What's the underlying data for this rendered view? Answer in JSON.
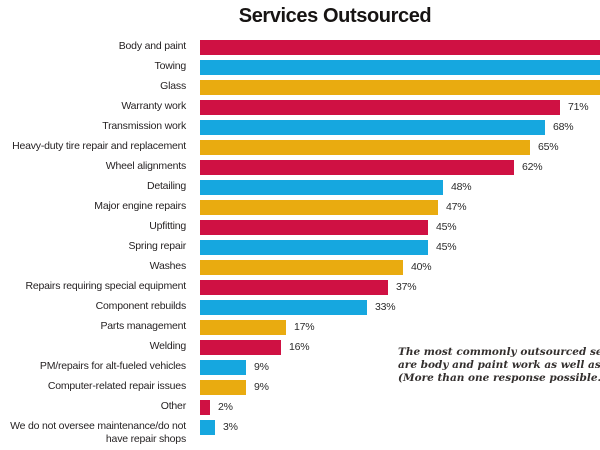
{
  "title": "Services Outsourced",
  "palette": {
    "red": "#CF1143",
    "blue": "#16A7DF",
    "yellow": "#E9AB10"
  },
  "chart_data": {
    "type": "bar",
    "orientation": "horizontal",
    "title": "Services Outsourced",
    "value_unit": "percent",
    "grid": false,
    "legend": false,
    "color_cycle": [
      "red",
      "blue",
      "yellow"
    ],
    "x_visible_range": [
      0,
      79
    ],
    "bars": [
      {
        "label": "Body and paint",
        "value": null,
        "value_label": "",
        "color": "red",
        "cut_off_at_right_edge": true
      },
      {
        "label": "Towing",
        "value": null,
        "value_label": "",
        "color": "blue",
        "cut_off_at_right_edge": true
      },
      {
        "label": "Glass",
        "value": null,
        "value_label": "",
        "color": "yellow",
        "cut_off_at_right_edge": true
      },
      {
        "label": "Warranty work",
        "value": 71,
        "value_label": "71%",
        "color": "red"
      },
      {
        "label": "Transmission work",
        "value": 68,
        "value_label": "68%",
        "color": "blue"
      },
      {
        "label": "Heavy-duty tire repair and replacement",
        "value": 65,
        "value_label": "65%",
        "color": "yellow"
      },
      {
        "label": "Wheel alignments",
        "value": 62,
        "value_label": "62%",
        "color": "red"
      },
      {
        "label": "Detailing",
        "value": 48,
        "value_label": "48%",
        "color": "blue"
      },
      {
        "label": "Major engine repairs",
        "value": 47,
        "value_label": "47%",
        "color": "yellow"
      },
      {
        "label": "Upfitting",
        "value": 45,
        "value_label": "45%",
        "color": "red"
      },
      {
        "label": "Spring repair",
        "value": 45,
        "value_label": "45%",
        "color": "blue"
      },
      {
        "label": "Washes",
        "value": 40,
        "value_label": "40%",
        "color": "yellow"
      },
      {
        "label": "Repairs requiring special equipment",
        "value": 37,
        "value_label": "37%",
        "color": "red"
      },
      {
        "label": "Component rebuilds",
        "value": 33,
        "value_label": "33%",
        "color": "blue"
      },
      {
        "label": "Parts management",
        "value": 17,
        "value_label": "17%",
        "color": "yellow"
      },
      {
        "label": "Welding",
        "value": 16,
        "value_label": "16%",
        "color": "red"
      },
      {
        "label": "PM/repairs for alt-fueled vehicles",
        "value": 9,
        "value_label": "9%",
        "color": "blue"
      },
      {
        "label": "Computer-related repair issues",
        "value": 9,
        "value_label": "9%",
        "color": "yellow"
      },
      {
        "label": "Other",
        "value": 2,
        "value_label": "2%",
        "color": "red"
      },
      {
        "label": "We do not oversee maintenance/do not have repair shops",
        "value": 3,
        "value_label": "3%",
        "color": "blue"
      }
    ]
  },
  "annotation": {
    "lines": [
      "The most commonly outsourced services",
      "are body and paint work as well as towing.",
      "(More than one response possible.)"
    ]
  }
}
